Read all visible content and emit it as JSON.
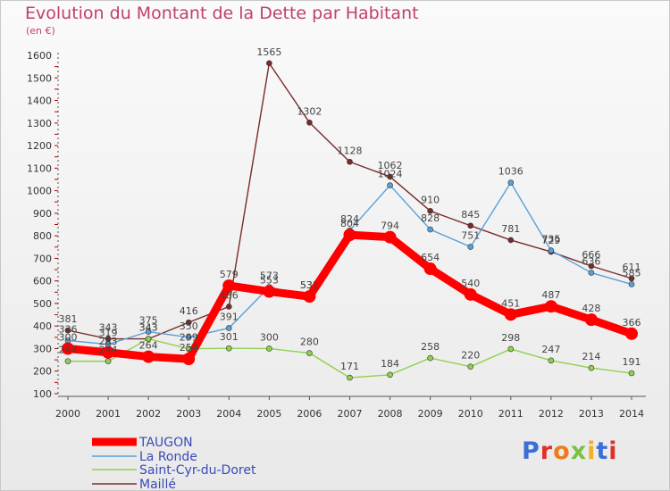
{
  "chart_data": {
    "type": "line",
    "title": "Evolution du Montant de la Dette par Habitant",
    "unit_label": "(en €)",
    "x": [
      "2000",
      "2001",
      "2002",
      "2003",
      "2004",
      "2005",
      "2006",
      "2007",
      "2008",
      "2009",
      "2010",
      "2011",
      "2012",
      "2013",
      "2014"
    ],
    "ylim": [
      100,
      1600
    ],
    "yticks": [
      100,
      200,
      300,
      400,
      500,
      600,
      700,
      800,
      900,
      1000,
      1100,
      1200,
      1300,
      1400,
      1500,
      1600
    ],
    "grid": false,
    "legend_position": "bottom-left",
    "series": [
      {
        "name": "TAUGON",
        "color": "#ff0000",
        "values": [
          300,
          283,
          264,
          254,
          579,
          553,
          531,
          804,
          794,
          654,
          540,
          451,
          487,
          428,
          366
        ]
      },
      {
        "name": "La Ronde",
        "color": "#5aa0d6",
        "values": [
          336,
          319,
          375,
          350,
          391,
          573,
          531,
          824,
          1024,
          828,
          751,
          1036,
          735,
          636,
          585
        ]
      },
      {
        "name": "Saint-Cyr-du-Doret",
        "color": "#8fd14f",
        "values": [
          244,
          244,
          343,
          299,
          301,
          300,
          280,
          171,
          184,
          258,
          220,
          298,
          247,
          214,
          191
        ]
      },
      {
        "name": "Maillé",
        "color": "#7a2a2a",
        "values": [
          381,
          343,
          343,
          416,
          486,
          1565,
          1302,
          1128,
          1062,
          910,
          845,
          781,
          729,
          666,
          611
        ]
      }
    ]
  },
  "logo": {
    "text": "Proxiti",
    "colors": [
      "#3a6fd8",
      "#e0302a",
      "#f07a1a",
      "#7ac142",
      "#f0b020",
      "#3a6fd8",
      "#e0302a"
    ]
  }
}
